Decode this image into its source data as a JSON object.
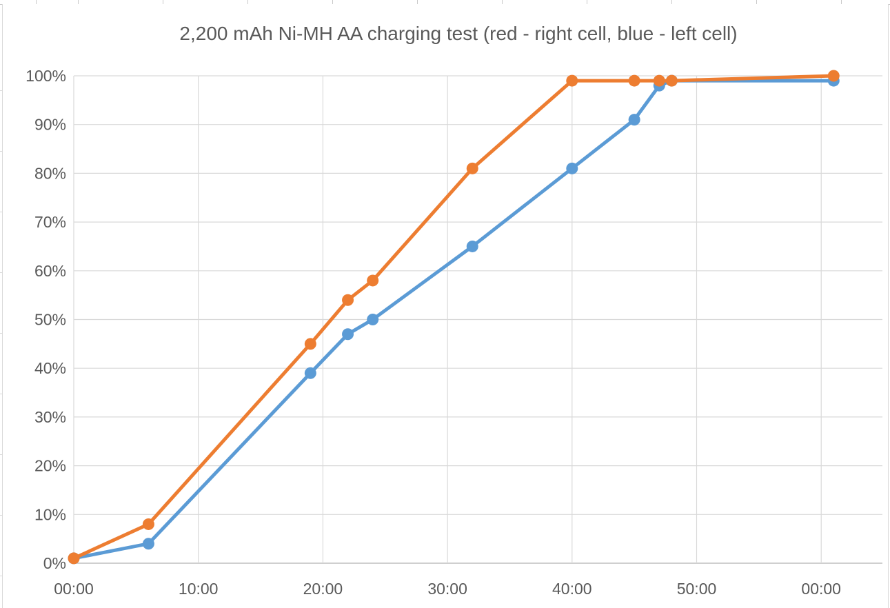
{
  "chart_data": {
    "type": "line",
    "title": "2,200 mAh Ni-MH AA charging test (red - right cell, blue - left cell)",
    "grid": true,
    "legend_position": "none (series identified in title)",
    "x_axis": {
      "tick_labels": [
        "00:00",
        "10:00",
        "20:00",
        "30:00",
        "40:00",
        "50:00",
        "00:00"
      ],
      "tick_minutes": [
        0,
        10,
        20,
        30,
        40,
        50,
        60
      ],
      "xlim_minutes": [
        0,
        65
      ]
    },
    "y_axis": {
      "tick_labels": [
        "0%",
        "10%",
        "20%",
        "30%",
        "40%",
        "50%",
        "60%",
        "70%",
        "80%",
        "90%",
        "100%"
      ],
      "ylim": [
        0,
        100
      ]
    },
    "series": [
      {
        "name": "left cell",
        "color": "#5B9BD5",
        "marker": "circle",
        "x_minutes": [
          0,
          6,
          19,
          22,
          24,
          32,
          40,
          45,
          47,
          48,
          61
        ],
        "y_percent": [
          1,
          4,
          39,
          47,
          50,
          65,
          81,
          91,
          98,
          99,
          99
        ]
      },
      {
        "name": "right cell",
        "color": "#ED7D31",
        "marker": "circle",
        "x_minutes": [
          0,
          6,
          19,
          22,
          24,
          32,
          40,
          45,
          47,
          48,
          61
        ],
        "y_percent": [
          1,
          8,
          45,
          54,
          58,
          81,
          99,
          99,
          99,
          99,
          100
        ]
      }
    ],
    "colors": {
      "gridline": "#D9D9D9",
      "axis_line": "#BFBFBF",
      "text": "#595959"
    }
  }
}
